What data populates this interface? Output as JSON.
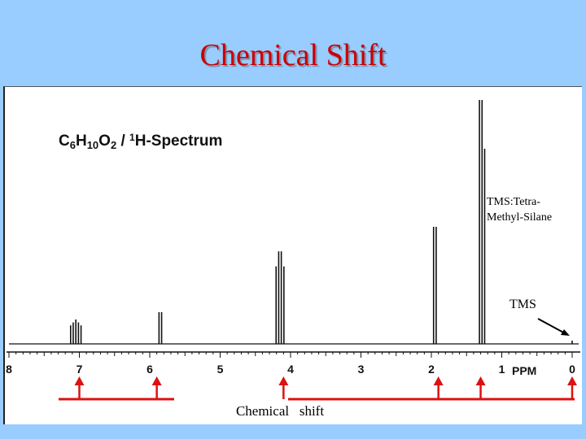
{
  "slide": {
    "title": "Chemical Shift"
  },
  "colors": {
    "background": "#99ccff",
    "title": "#cc0000",
    "arrows": "#dd1111",
    "spectrum": "#111111"
  },
  "chart_data": {
    "type": "line",
    "title": "C6H10O2 / 1H-Spectrum",
    "title_parts": {
      "main": "C",
      "sub1": "6",
      "h": "H",
      "sub2": "10",
      "o": "O",
      "sub3": "2",
      "slash": " / ",
      "sup": "1",
      "rest": "H-Spectrum"
    },
    "xlabel": "PPM",
    "xlim": [
      8,
      0
    ],
    "x_reversed": true,
    "ticks": [
      8,
      7,
      6,
      5,
      4,
      3,
      2,
      1,
      0
    ],
    "tick_labels": [
      "8",
      "7",
      "6",
      "5",
      "4",
      "3",
      "2",
      "1",
      "0"
    ],
    "grid": false,
    "peaks": [
      {
        "ppm": 7.05,
        "height": 0.1,
        "lines": 5
      },
      {
        "ppm": 5.85,
        "height": 0.13,
        "lines": 2
      },
      {
        "ppm": 4.15,
        "height": 0.41,
        "lines": 4
      },
      {
        "ppm": 1.95,
        "height": 0.48,
        "lines": 2
      },
      {
        "ppm": 1.28,
        "height": 1.0,
        "lines": 3
      },
      {
        "ppm": 0.0,
        "height": 0.01,
        "lines": 1
      }
    ],
    "chemical_shift_arrows_ppm": [
      7.0,
      5.9,
      4.1,
      1.9,
      1.3,
      0.0
    ],
    "annotations": {
      "tms_note": "TMS:Tetra-Methyl-Silane",
      "tms_label": "TMS",
      "shift_label": "Chemical   shift"
    }
  }
}
